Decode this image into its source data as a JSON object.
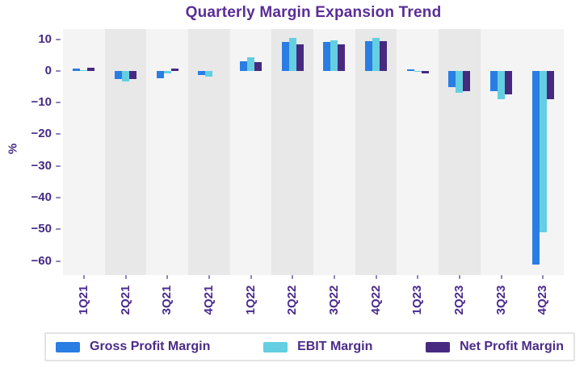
{
  "title": "Quarterly Margin Expansion Trend",
  "colors": {
    "gross_profit_margin": "#2a7de2",
    "ebit_margin": "#63cfe1",
    "net_profit_margin": "#472a80",
    "band_light": "#f4f4f4",
    "band_dark": "#e8e8e8",
    "title_text": "#5a2d96",
    "axis_text": "#452a85",
    "tick_mark": "#8d80b8",
    "legend_border": "#e3e3e3"
  },
  "chart_data": {
    "type": "bar",
    "title": "Quarterly Margin Expansion Trend",
    "xlabel": "",
    "ylabel": "%",
    "categories": [
      "1Q21",
      "2Q21",
      "3Q21",
      "4Q21",
      "1Q22",
      "2Q22",
      "3Q22",
      "4Q22",
      "1Q23",
      "2Q23",
      "3Q23",
      "4Q23"
    ],
    "series": [
      {
        "name": "Gross Profit Margin",
        "color": "#2a7de2",
        "values": [
          0.7,
          -2.7,
          -2.2,
          -1.4,
          3.1,
          9.2,
          9.2,
          9.5,
          0.6,
          -5.2,
          -6.5,
          -61.0
        ]
      },
      {
        "name": "EBIT Margin",
        "color": "#63cfe1",
        "values": [
          0.1,
          -3.3,
          -0.8,
          -1.7,
          4.2,
          10.4,
          9.6,
          10.5,
          -0.1,
          -6.9,
          -9.0,
          -50.8
        ]
      },
      {
        "name": "Net Profit Margin",
        "color": "#472a80",
        "values": [
          1.0,
          -2.7,
          0.8,
          0.0,
          2.8,
          8.4,
          8.4,
          9.5,
          -0.8,
          -6.5,
          -7.4,
          -9.0
        ]
      }
    ],
    "yticks": [
      10,
      0,
      -10,
      -20,
      -30,
      -40,
      -50,
      -60
    ],
    "ylim": [
      -64.4,
      13.2
    ],
    "grid": false,
    "legend_position": "bottom",
    "shaded_categories": [
      "2Q21",
      "4Q21",
      "2Q22",
      "4Q22",
      "2Q23"
    ]
  }
}
